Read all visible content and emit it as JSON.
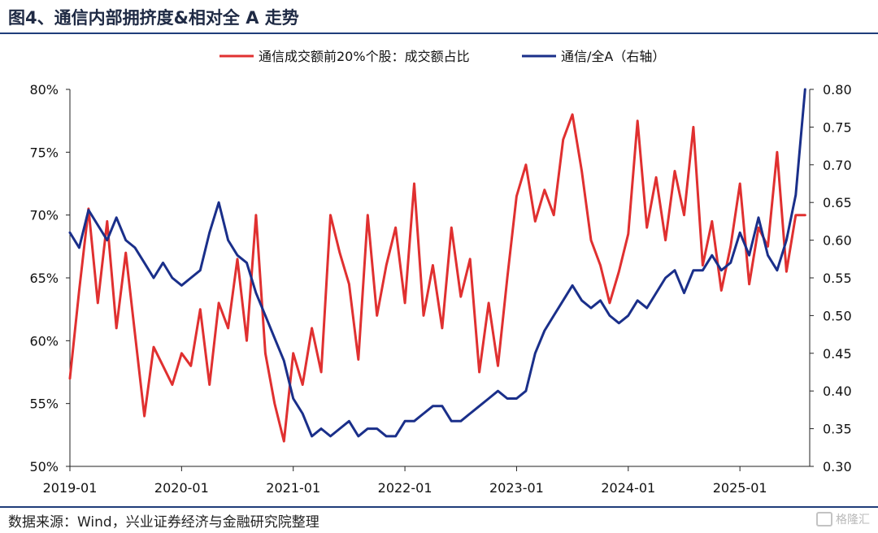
{
  "title": "图4、通信内部拥挤度&相对全 A 走势",
  "source": "数据来源：Wind，兴业证券经济与金融研究院整理",
  "watermark": "格隆汇",
  "colors": {
    "series1": "#e03030",
    "series2": "#1a2f8a",
    "axis": "#222222"
  },
  "chart_data": {
    "type": "line",
    "x_tick_labels": [
      "2019-01",
      "2020-01",
      "2021-01",
      "2022-01",
      "2023-01",
      "2024-01",
      "2025-01"
    ],
    "x_range": [
      "2019-01",
      "2025-08"
    ],
    "y_left": {
      "range": [
        50,
        80
      ],
      "ticks": [
        "50%",
        "55%",
        "60%",
        "65%",
        "70%",
        "75%",
        "80%"
      ]
    },
    "y_right": {
      "range": [
        0.3,
        0.8
      ],
      "ticks": [
        "0.30",
        "0.35",
        "0.40",
        "0.45",
        "0.50",
        "0.55",
        "0.60",
        "0.65",
        "0.70",
        "0.75",
        "0.80"
      ]
    },
    "legend": {
      "placement": "top",
      "items": [
        "通信成交额前20%个股：成交额占比",
        "通信/全A（右轴）"
      ]
    },
    "grid": false,
    "series": [
      {
        "name": "通信成交额前20%个股：成交额占比",
        "axis": "left",
        "points": [
          [
            "2019-01",
            57.0
          ],
          [
            "2019-02",
            64.0
          ],
          [
            "2019-03",
            70.5
          ],
          [
            "2019-04",
            63.0
          ],
          [
            "2019-05",
            69.5
          ],
          [
            "2019-06",
            61.0
          ],
          [
            "2019-07",
            67.0
          ],
          [
            "2019-08",
            60.5
          ],
          [
            "2019-09",
            54.0
          ],
          [
            "2019-10",
            59.5
          ],
          [
            "2019-11",
            58.0
          ],
          [
            "2019-12",
            56.5
          ],
          [
            "2020-01",
            59.0
          ],
          [
            "2020-02",
            58.0
          ],
          [
            "2020-03",
            62.5
          ],
          [
            "2020-04",
            56.5
          ],
          [
            "2020-05",
            63.0
          ],
          [
            "2020-06",
            61.0
          ],
          [
            "2020-07",
            66.5
          ],
          [
            "2020-08",
            60.0
          ],
          [
            "2020-09",
            70.0
          ],
          [
            "2020-10",
            59.0
          ],
          [
            "2020-11",
            55.0
          ],
          [
            "2020-12",
            52.0
          ],
          [
            "2021-01",
            59.0
          ],
          [
            "2021-02",
            56.5
          ],
          [
            "2021-03",
            61.0
          ],
          [
            "2021-04",
            57.5
          ],
          [
            "2021-05",
            70.0
          ],
          [
            "2021-06",
            67.0
          ],
          [
            "2021-07",
            64.5
          ],
          [
            "2021-08",
            58.5
          ],
          [
            "2021-09",
            70.0
          ],
          [
            "2021-10",
            62.0
          ],
          [
            "2021-11",
            66.0
          ],
          [
            "2021-12",
            69.0
          ],
          [
            "2022-01",
            63.0
          ],
          [
            "2022-02",
            72.5
          ],
          [
            "2022-03",
            62.0
          ],
          [
            "2022-04",
            66.0
          ],
          [
            "2022-05",
            61.0
          ],
          [
            "2022-06",
            69.0
          ],
          [
            "2022-07",
            63.5
          ],
          [
            "2022-08",
            66.5
          ],
          [
            "2022-09",
            57.5
          ],
          [
            "2022-10",
            63.0
          ],
          [
            "2022-11",
            58.0
          ],
          [
            "2022-12",
            65.0
          ],
          [
            "2023-01",
            71.5
          ],
          [
            "2023-02",
            74.0
          ],
          [
            "2023-03",
            69.5
          ],
          [
            "2023-04",
            72.0
          ],
          [
            "2023-05",
            70.0
          ],
          [
            "2023-06",
            76.0
          ],
          [
            "2023-07",
            78.0
          ],
          [
            "2023-08",
            73.5
          ],
          [
            "2023-09",
            68.0
          ],
          [
            "2023-10",
            66.0
          ],
          [
            "2023-11",
            63.0
          ],
          [
            "2023-12",
            65.5
          ],
          [
            "2024-01",
            68.5
          ],
          [
            "2024-02",
            77.5
          ],
          [
            "2024-03",
            69.0
          ],
          [
            "2024-04",
            73.0
          ],
          [
            "2024-05",
            68.0
          ],
          [
            "2024-06",
            73.5
          ],
          [
            "2024-07",
            70.0
          ],
          [
            "2024-08",
            77.0
          ],
          [
            "2024-09",
            66.0
          ],
          [
            "2024-10",
            69.5
          ],
          [
            "2024-11",
            64.0
          ],
          [
            "2024-12",
            67.5
          ],
          [
            "2025-01",
            72.5
          ],
          [
            "2025-02",
            64.5
          ],
          [
            "2025-03",
            69.0
          ],
          [
            "2025-04",
            67.5
          ],
          [
            "2025-05",
            75.0
          ],
          [
            "2025-06",
            65.5
          ],
          [
            "2025-07",
            70.0
          ],
          [
            "2025-08",
            70.0
          ]
        ]
      },
      {
        "name": "通信/全A（右轴）",
        "axis": "right",
        "points": [
          [
            "2019-01",
            0.61
          ],
          [
            "2019-02",
            0.59
          ],
          [
            "2019-03",
            0.64
          ],
          [
            "2019-04",
            0.62
          ],
          [
            "2019-05",
            0.6
          ],
          [
            "2019-06",
            0.63
          ],
          [
            "2019-07",
            0.6
          ],
          [
            "2019-08",
            0.59
          ],
          [
            "2019-09",
            0.57
          ],
          [
            "2019-10",
            0.55
          ],
          [
            "2019-11",
            0.57
          ],
          [
            "2019-12",
            0.55
          ],
          [
            "2020-01",
            0.54
          ],
          [
            "2020-02",
            0.55
          ],
          [
            "2020-03",
            0.56
          ],
          [
            "2020-04",
            0.61
          ],
          [
            "2020-05",
            0.65
          ],
          [
            "2020-06",
            0.6
          ],
          [
            "2020-07",
            0.58
          ],
          [
            "2020-08",
            0.57
          ],
          [
            "2020-09",
            0.53
          ],
          [
            "2020-10",
            0.5
          ],
          [
            "2020-11",
            0.47
          ],
          [
            "2020-12",
            0.44
          ],
          [
            "2021-01",
            0.39
          ],
          [
            "2021-02",
            0.37
          ],
          [
            "2021-03",
            0.34
          ],
          [
            "2021-04",
            0.35
          ],
          [
            "2021-05",
            0.34
          ],
          [
            "2021-06",
            0.35
          ],
          [
            "2021-07",
            0.36
          ],
          [
            "2021-08",
            0.34
          ],
          [
            "2021-09",
            0.35
          ],
          [
            "2021-10",
            0.35
          ],
          [
            "2021-11",
            0.34
          ],
          [
            "2021-12",
            0.34
          ],
          [
            "2022-01",
            0.36
          ],
          [
            "2022-02",
            0.36
          ],
          [
            "2022-03",
            0.37
          ],
          [
            "2022-04",
            0.38
          ],
          [
            "2022-05",
            0.38
          ],
          [
            "2022-06",
            0.36
          ],
          [
            "2022-07",
            0.36
          ],
          [
            "2022-08",
            0.37
          ],
          [
            "2022-09",
            0.38
          ],
          [
            "2022-10",
            0.39
          ],
          [
            "2022-11",
            0.4
          ],
          [
            "2022-12",
            0.39
          ],
          [
            "2023-01",
            0.39
          ],
          [
            "2023-02",
            0.4
          ],
          [
            "2023-03",
            0.45
          ],
          [
            "2023-04",
            0.48
          ],
          [
            "2023-05",
            0.5
          ],
          [
            "2023-06",
            0.52
          ],
          [
            "2023-07",
            0.54
          ],
          [
            "2023-08",
            0.52
          ],
          [
            "2023-09",
            0.51
          ],
          [
            "2023-10",
            0.52
          ],
          [
            "2023-11",
            0.5
          ],
          [
            "2023-12",
            0.49
          ],
          [
            "2024-01",
            0.5
          ],
          [
            "2024-02",
            0.52
          ],
          [
            "2024-03",
            0.51
          ],
          [
            "2024-04",
            0.53
          ],
          [
            "2024-05",
            0.55
          ],
          [
            "2024-06",
            0.56
          ],
          [
            "2024-07",
            0.53
          ],
          [
            "2024-08",
            0.56
          ],
          [
            "2024-09",
            0.56
          ],
          [
            "2024-10",
            0.58
          ],
          [
            "2024-11",
            0.56
          ],
          [
            "2024-12",
            0.57
          ],
          [
            "2025-01",
            0.61
          ],
          [
            "2025-02",
            0.58
          ],
          [
            "2025-03",
            0.63
          ],
          [
            "2025-04",
            0.58
          ],
          [
            "2025-05",
            0.56
          ],
          [
            "2025-06",
            0.6
          ],
          [
            "2025-07",
            0.66
          ],
          [
            "2025-08",
            0.8
          ]
        ]
      }
    ]
  }
}
